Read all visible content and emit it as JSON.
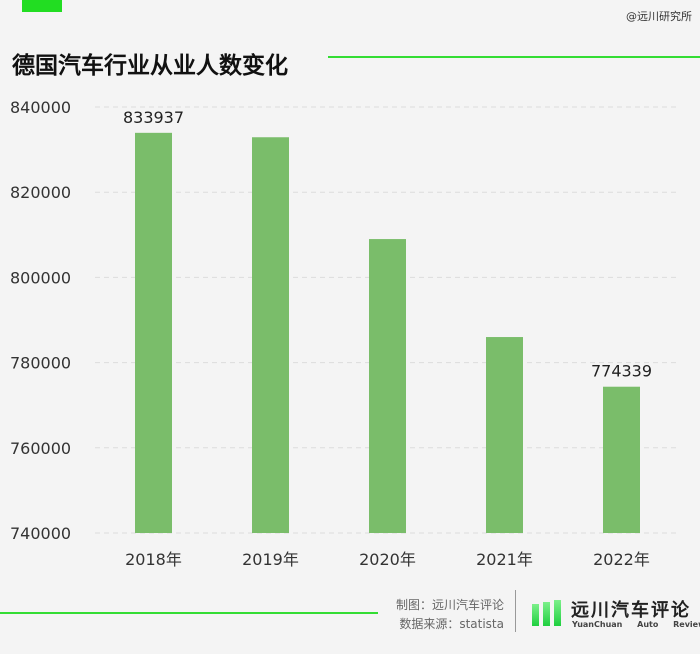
{
  "header": {
    "watermark": "@远川研究所",
    "title": "德国汽车行业从业人数变化"
  },
  "colors": {
    "accent": "#33dd33",
    "bar": "#7abd6a",
    "grid": "#dcdcdc"
  },
  "chart_data": {
    "type": "bar",
    "title": "德国汽车行业从业人数变化",
    "xlabel": "",
    "ylabel": "",
    "categories": [
      "2018年",
      "2019年",
      "2020年",
      "2021年",
      "2022年"
    ],
    "values": [
      833937,
      832900,
      809000,
      786000,
      774339
    ],
    "data_labels": [
      "833937",
      "",
      "",
      "",
      "774339"
    ],
    "ylim": [
      740000,
      840000
    ],
    "yticks": [
      740000,
      760000,
      780000,
      800000,
      820000,
      840000
    ],
    "ytick_labels": [
      "740000",
      "760000",
      "780000",
      "800000",
      "820000",
      "840000"
    ],
    "grid": "horizontal dashed",
    "legend": "none"
  },
  "footer": {
    "credit": "制图：远川汽车评论",
    "source": "数据来源：statista",
    "brand_cn": "远川汽车评论",
    "brand_en": "YuanChuan Auto Review",
    "logo_icon": "green-bars-logo-icon"
  }
}
